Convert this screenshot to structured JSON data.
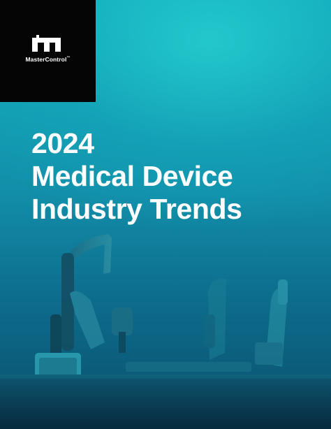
{
  "brand": {
    "name": "MasterControl",
    "trademark": "™"
  },
  "cover": {
    "title_lines": [
      "2024",
      "Medical Device",
      "Industry Trends"
    ]
  },
  "colors": {
    "logo_block": "#050505",
    "title_text": "#ffffff",
    "background_top": "#14b0be",
    "background_bottom": "#0a4f6c"
  },
  "illustration": {
    "subject": "robotic-arms-on-assembly-line"
  }
}
